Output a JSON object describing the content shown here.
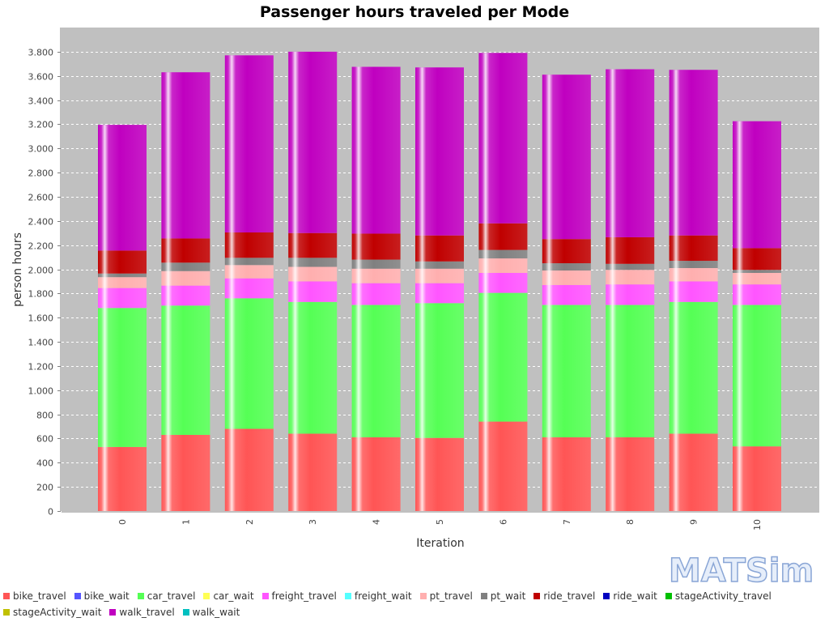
{
  "chart_data": {
    "type": "bar",
    "stacked": true,
    "title": "Passenger hours traveled per Mode",
    "xlabel": "Iteration",
    "ylabel": "person hours",
    "ylim": [
      0,
      4000
    ],
    "y_ticks": [
      0,
      200,
      400,
      600,
      800,
      1000,
      1200,
      1400,
      1600,
      1800,
      2000,
      2200,
      2400,
      2600,
      2800,
      3000,
      3200,
      3400,
      3600,
      3800
    ],
    "y_tick_labels": [
      "0",
      "200",
      "400",
      "600",
      "800",
      "1.000",
      "1.200",
      "1.400",
      "1.600",
      "1.800",
      "2.000",
      "2.200",
      "2.400",
      "2.600",
      "2.800",
      "3.000",
      "3.200",
      "3.400",
      "3.600",
      "3.800"
    ],
    "grid": true,
    "legend_position": "bottom",
    "categories": [
      "0",
      "1",
      "2",
      "3",
      "4",
      "5",
      "6",
      "7",
      "8",
      "9",
      "10"
    ],
    "series": [
      {
        "name": "bike_travel",
        "color": "#ff5555",
        "values": [
          530,
          630,
          680,
          640,
          610,
          605,
          740,
          610,
          610,
          640,
          535
        ]
      },
      {
        "name": "bike_wait",
        "color": "#5555ff",
        "values": [
          0,
          0,
          0,
          0,
          0,
          0,
          0,
          0,
          0,
          0,
          0
        ]
      },
      {
        "name": "car_travel",
        "color": "#55ff55",
        "values": [
          1150,
          1070,
          1080,
          1090,
          1095,
          1115,
          1065,
          1095,
          1095,
          1090,
          1170
        ]
      },
      {
        "name": "car_wait",
        "color": "#ffff55",
        "values": [
          0,
          0,
          0,
          0,
          0,
          0,
          0,
          0,
          0,
          0,
          0
        ]
      },
      {
        "name": "freight_travel",
        "color": "#ff55ff",
        "values": [
          165,
          165,
          165,
          170,
          180,
          165,
          165,
          165,
          170,
          170,
          170
        ]
      },
      {
        "name": "freight_wait",
        "color": "#55ffff",
        "values": [
          0,
          0,
          0,
          0,
          0,
          0,
          0,
          0,
          0,
          0,
          0
        ]
      },
      {
        "name": "pt_travel",
        "color": "#ffafaf",
        "values": [
          90,
          120,
          110,
          120,
          120,
          120,
          120,
          120,
          120,
          110,
          95
        ]
      },
      {
        "name": "pt_wait",
        "color": "#808080",
        "values": [
          30,
          70,
          60,
          75,
          75,
          60,
          70,
          60,
          50,
          60,
          25
        ]
      },
      {
        "name": "ride_travel",
        "color": "#c00000",
        "values": [
          190,
          200,
          210,
          205,
          215,
          215,
          220,
          200,
          220,
          210,
          180
        ]
      },
      {
        "name": "ride_wait",
        "color": "#0000c0",
        "values": [
          0,
          0,
          0,
          0,
          0,
          0,
          0,
          0,
          0,
          0,
          0
        ]
      },
      {
        "name": "stageActivity_travel",
        "color": "#00c000",
        "values": [
          0,
          0,
          0,
          0,
          0,
          0,
          0,
          0,
          0,
          0,
          0
        ]
      },
      {
        "name": "stageActivity_wait",
        "color": "#c0c000",
        "values": [
          0,
          0,
          0,
          0,
          0,
          0,
          0,
          0,
          0,
          0,
          0
        ]
      },
      {
        "name": "walk_travel",
        "color": "#c000c0",
        "values": [
          1040,
          1375,
          1465,
          1500,
          1380,
          1390,
          1410,
          1360,
          1390,
          1370,
          1050
        ]
      },
      {
        "name": "walk_wait",
        "color": "#00c0c0",
        "values": [
          0,
          0,
          0,
          0,
          0,
          0,
          0,
          0,
          0,
          0,
          0
        ]
      }
    ]
  },
  "logo": {
    "text": "MATSim"
  }
}
